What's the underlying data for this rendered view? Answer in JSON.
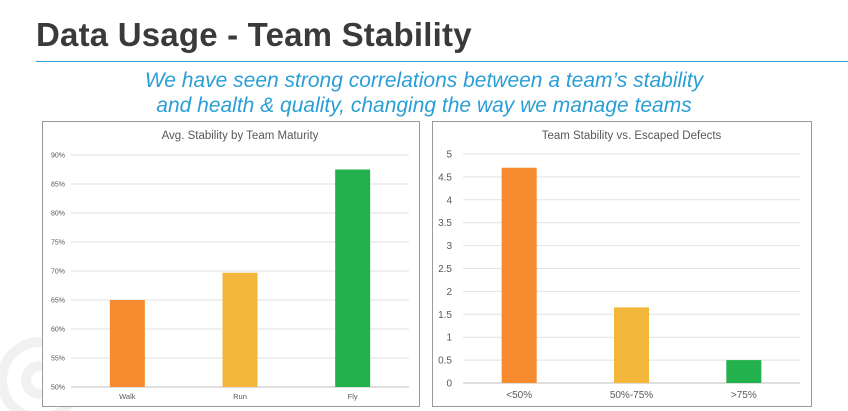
{
  "slide": {
    "title": "Data Usage - Team Stability",
    "subtitle_line1": "We have seen strong correlations between a team’s stability",
    "subtitle_line2": "and health & quality, changing the way we manage teams"
  },
  "colors": {
    "title": "#3a3a3a",
    "accent_blue": "#2a9fd6",
    "orange": "#f58a2e",
    "yellow": "#f2b63a",
    "green": "#22b14c"
  },
  "chart_data": [
    {
      "type": "bar",
      "title": "Avg. Stability by Team Maturity",
      "categories": [
        "Walk",
        "Run",
        "Fly"
      ],
      "values": [
        65,
        69.7,
        87.5
      ],
      "bar_colors": [
        "#f58a2e",
        "#f2b63a",
        "#22b14c"
      ],
      "yticks": [
        "50%",
        "55%",
        "60%",
        "65%",
        "70%",
        "75%",
        "80%",
        "85%",
        "90%"
      ],
      "ylim": [
        50,
        90
      ],
      "grid": true,
      "legend": "none"
    },
    {
      "type": "bar",
      "title": "Team Stability vs. Escaped Defects",
      "categories": [
        "<50%",
        "50%-75%",
        ">75%"
      ],
      "values": [
        4.7,
        1.65,
        0.5
      ],
      "bar_colors": [
        "#f58a2e",
        "#f2b63a",
        "#22b14c"
      ],
      "yticks": [
        "0",
        "0.5",
        "1",
        "1.5",
        "2",
        "2.5",
        "3",
        "3.5",
        "4",
        "4.5",
        "5"
      ],
      "ylim": [
        0,
        5
      ],
      "grid": true,
      "legend": "none"
    }
  ]
}
